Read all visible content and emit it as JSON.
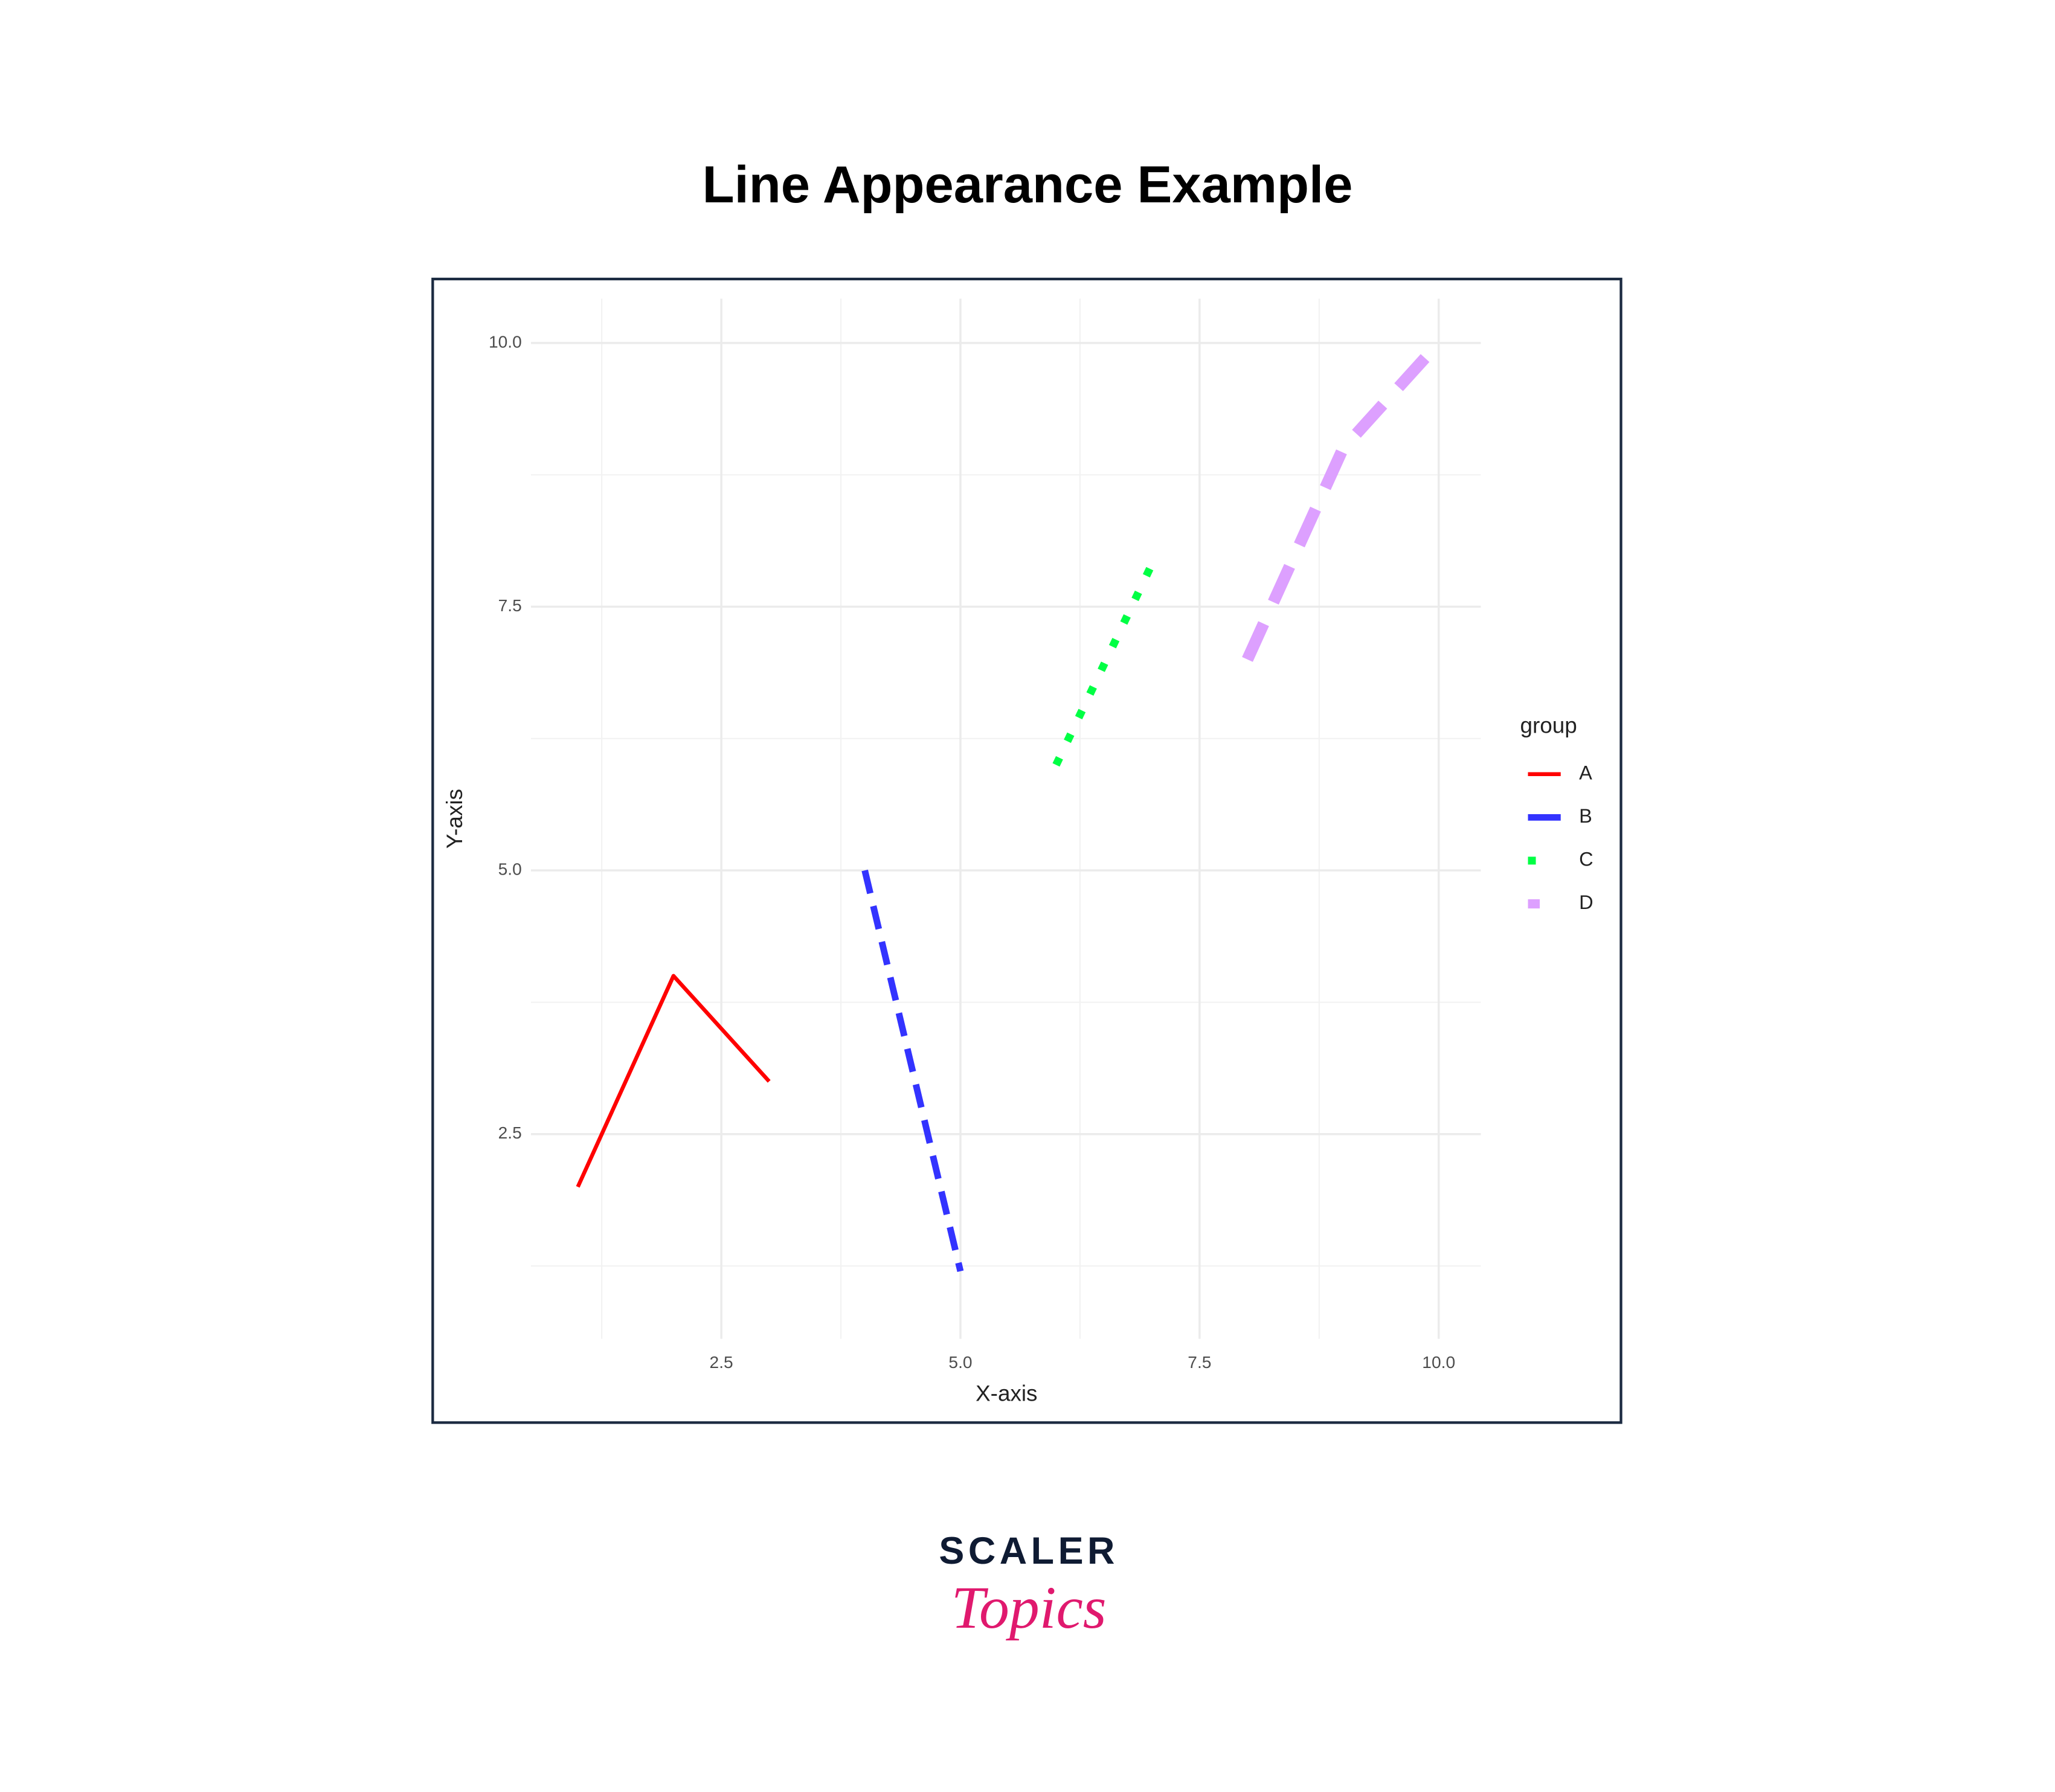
{
  "chart_data": {
    "type": "line",
    "title": "Line Appearance Example",
    "xlabel": "X-axis",
    "ylabel": "Y-axis",
    "xlim": [
      0.51,
      10.44
    ],
    "ylim": [
      0.56,
      10.42
    ],
    "xticks": [
      2.5,
      {
        "value": 5,
        "label": "5.0"
      },
      7.5,
      {
        "value": 10,
        "label": "10.0"
      }
    ],
    "yticks": [
      2.5,
      {
        "value": 5,
        "label": "5.0"
      },
      7.5,
      {
        "value": 10,
        "label": "10.0"
      }
    ],
    "minor_xticks": [
      1.25,
      3.75,
      6.25,
      8.75
    ],
    "minor_yticks": [
      1.25,
      3.75,
      6.25,
      8.75
    ],
    "grid": true,
    "legend_title": "group",
    "legend_position": "right",
    "series": [
      {
        "name": "A",
        "color": "#ff0000",
        "linetype": "solid",
        "linewidth": 3,
        "x": [
          1,
          2,
          3
        ],
        "values": [
          2,
          4,
          3
        ]
      },
      {
        "name": "B",
        "color": "#3333ff",
        "linetype": "dashed",
        "linewidth": 5,
        "x": [
          4,
          5
        ],
        "values": [
          5,
          1.2
        ]
      },
      {
        "name": "C",
        "color": "#00ff44",
        "linetype": "dotted",
        "linewidth": 6,
        "x": [
          6,
          7
        ],
        "values": [
          6,
          7.9
        ]
      },
      {
        "name": "D",
        "color": "#dda0ff",
        "linetype": "longdash",
        "linewidth": 9,
        "x": [
          8,
          9,
          10
        ],
        "values": [
          7,
          9,
          10
        ]
      }
    ]
  },
  "logo": {
    "brand": "SCALER",
    "sub": "Topics"
  }
}
